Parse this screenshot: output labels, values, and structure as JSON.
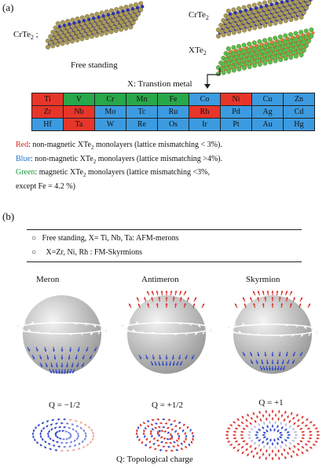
{
  "panel_a": {
    "label": "(a)",
    "crte2_left": "CrTe",
    "crte2_left_sub": "2",
    "crte2_right": "CrTe",
    "crte2_right_sub": "2",
    "xte2": "XTe",
    "xte2_sub": "2",
    "free_standing": "Free standing",
    "table_title": "X: Transtion metal",
    "table_rows": [
      [
        {
          "t": "Ti",
          "c": "red"
        },
        {
          "t": "V",
          "c": "green"
        },
        {
          "t": "Cr",
          "c": "green"
        },
        {
          "t": "Mn",
          "c": "green"
        },
        {
          "t": "Fe",
          "c": "green"
        },
        {
          "t": "Co",
          "c": "blue"
        },
        {
          "t": "Ni",
          "c": "red"
        },
        {
          "t": "Cu",
          "c": "blue"
        },
        {
          "t": "Zn",
          "c": "blue"
        }
      ],
      [
        {
          "t": "Zr",
          "c": "red"
        },
        {
          "t": "Nb",
          "c": "red"
        },
        {
          "t": "Mo",
          "c": "blue"
        },
        {
          "t": "Tc",
          "c": "blue"
        },
        {
          "t": "Ru",
          "c": "blue"
        },
        {
          "t": "Rh",
          "c": "red"
        },
        {
          "t": "Pd",
          "c": "blue"
        },
        {
          "t": "Ag",
          "c": "blue"
        },
        {
          "t": "Cd",
          "c": "blue"
        }
      ],
      [
        {
          "t": "Hf",
          "c": "blue"
        },
        {
          "t": "Ta",
          "c": "red"
        },
        {
          "t": "W",
          "c": "blue"
        },
        {
          "t": "Re",
          "c": "blue"
        },
        {
          "t": "Os",
          "c": "blue"
        },
        {
          "t": "Ir",
          "c": "blue"
        },
        {
          "t": "Pt",
          "c": "blue"
        },
        {
          "t": "Au",
          "c": "blue"
        },
        {
          "t": "Hg",
          "c": "blue"
        }
      ]
    ],
    "legend_red_key": "Red",
    "legend_red_text": ":  non-magnetic XTe",
    "legend_red_tail": " monolayers (lattice mismatching < 3%).",
    "legend_blue_key": "Blue",
    "legend_blue_text": ":  non-magnetic XTe",
    "legend_blue_tail": " monolayers (lattice mismatching >4%).",
    "legend_green_key": "Green",
    "legend_green_text": ": magnetic XTe",
    "legend_green_tail": " monolayers (lattice mismatching <3%,",
    "legend_green_line2": "except Fe = 4.2 %)",
    "sub2": "2"
  },
  "panel_b": {
    "label": "(b)",
    "bullets": [
      "Free standing, X= Ti, Nb, Ta: AFM-merons",
      "X=Zr, Ni, Rh : FM-Skyrmions"
    ],
    "bullet_symbol": "○",
    "textures": [
      {
        "name": "Meron",
        "q": "Q = −1/2"
      },
      {
        "name": "Antimeron",
        "q": "Q = +1/2"
      },
      {
        "name": "Skyrmion",
        "q": "Q = +1"
      }
    ],
    "footer": "Q: Topological charge"
  },
  "colors": {
    "red": "#e8352a",
    "blue": "#3c9be0",
    "green": "#27a84a",
    "atom_te": "#a89a5a",
    "atom_cr": "#2a2fb8",
    "atom_x": "#e07a3a",
    "sphere": "#cfcfcf"
  }
}
